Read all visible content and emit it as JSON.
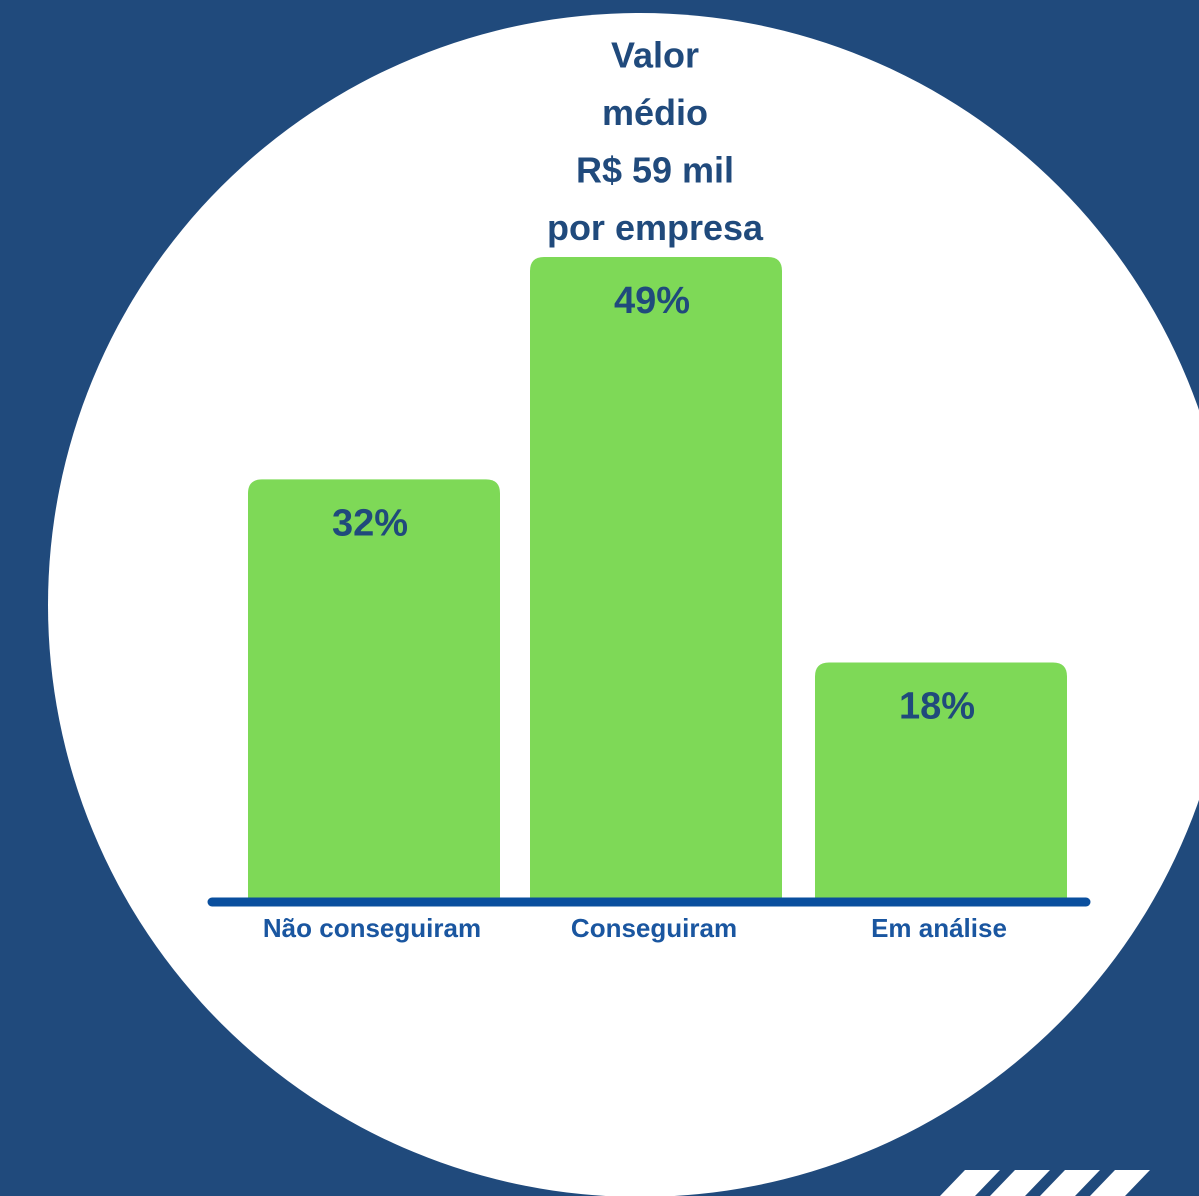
{
  "chart_data": {
    "type": "bar",
    "categories": [
      "Não conseguiram",
      "Conseguiram",
      "Em análise"
    ],
    "values": [
      32,
      49,
      18
    ],
    "value_labels": [
      "32%",
      "49%",
      "18%"
    ],
    "color": "#7ed957",
    "annotation": [
      "Valor",
      "médio",
      "R$ 59 mil",
      "por empresa"
    ]
  }
}
